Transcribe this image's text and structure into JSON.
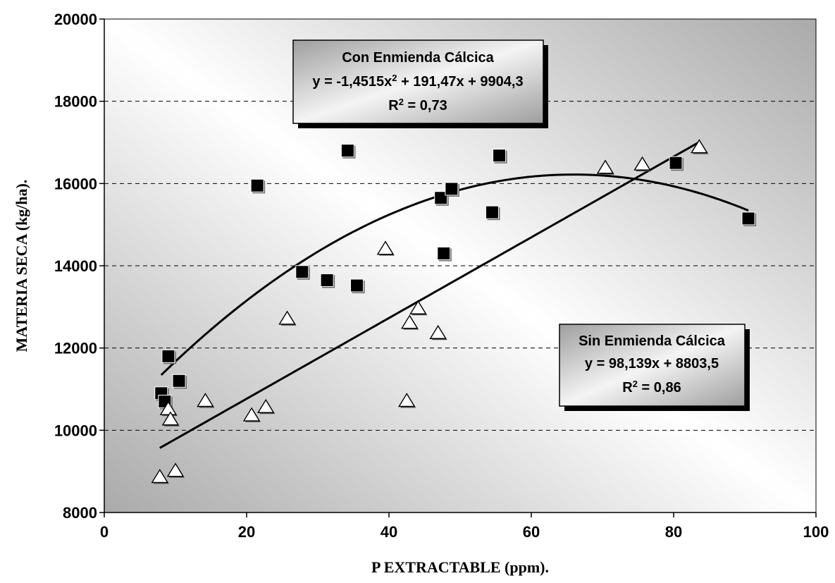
{
  "chart_data": {
    "type": "scatter",
    "xlabel": "P EXTRACTABLE (ppm).",
    "ylabel": "MATERIA SECA (kg/ha).",
    "xlim": [
      0,
      100
    ],
    "ylim": [
      8000,
      20000
    ],
    "x_ticks": [
      "0",
      "20",
      "40",
      "60",
      "80",
      "100"
    ],
    "y_ticks": [
      "8000",
      "10000",
      "12000",
      "14000",
      "16000",
      "18000",
      "20000"
    ],
    "grid": "horizontal-dashed",
    "series": [
      {
        "marker": "filled-square",
        "color": "#000000",
        "points": [
          {
            "x": 8,
            "y": 10900
          },
          {
            "x": 8.5,
            "y": 10700
          },
          {
            "x": 9,
            "y": 11800
          },
          {
            "x": 10.5,
            "y": 11200
          },
          {
            "x": 21.5,
            "y": 15950
          },
          {
            "x": 27.8,
            "y": 13850
          },
          {
            "x": 31.3,
            "y": 13650
          },
          {
            "x": 34.2,
            "y": 16800
          },
          {
            "x": 35.5,
            "y": 13520
          },
          {
            "x": 47.3,
            "y": 15650
          },
          {
            "x": 47.7,
            "y": 14300
          },
          {
            "x": 48.8,
            "y": 15870
          },
          {
            "x": 54.5,
            "y": 15300
          },
          {
            "x": 55.5,
            "y": 16680
          },
          {
            "x": 80.3,
            "y": 16500
          },
          {
            "x": 90.5,
            "y": 15150
          }
        ]
      },
      {
        "marker": "hollow-triangle",
        "color": "#000000",
        "points": [
          {
            "x": 7.8,
            "y": 8850
          },
          {
            "x": 9,
            "y": 10500
          },
          {
            "x": 9.3,
            "y": 10250
          },
          {
            "x": 10,
            "y": 9000
          },
          {
            "x": 14.2,
            "y": 10700
          },
          {
            "x": 20.7,
            "y": 10350
          },
          {
            "x": 22.7,
            "y": 10550
          },
          {
            "x": 25.7,
            "y": 12700
          },
          {
            "x": 39.5,
            "y": 14400
          },
          {
            "x": 42.5,
            "y": 10700
          },
          {
            "x": 42.9,
            "y": 12600
          },
          {
            "x": 44.1,
            "y": 12950
          },
          {
            "x": 46.9,
            "y": 12350
          },
          {
            "x": 70.4,
            "y": 16370
          },
          {
            "x": 75.6,
            "y": 16450
          },
          {
            "x": 83.6,
            "y": 16870
          }
        ]
      }
    ],
    "trendlines": [
      {
        "kind": "polynomial",
        "coefficients": [
          -1.4515,
          191.47,
          9904.3
        ],
        "x_range": [
          8,
          90.5
        ]
      },
      {
        "kind": "linear",
        "coefficients": [
          98.139,
          8803.5
        ],
        "x_range": [
          7.8,
          83.6
        ]
      }
    ],
    "annotations": [
      {
        "placement": "top-center",
        "title": "Con Enmienda Cálcica",
        "equation_a": "y = -1,4515x",
        "equation_sup": "2",
        "equation_b": " + 191,47x + 9904,3",
        "r2_a": "R",
        "r2_sup": "2",
        "r2_b": " = 0,73"
      },
      {
        "placement": "right-middle",
        "title": "Sin Enmienda Cálcica",
        "equation": "y = 98,139x + 8803,5",
        "r2_a": "R",
        "r2_sup": "2",
        "r2_b": " = 0,86"
      }
    ]
  }
}
